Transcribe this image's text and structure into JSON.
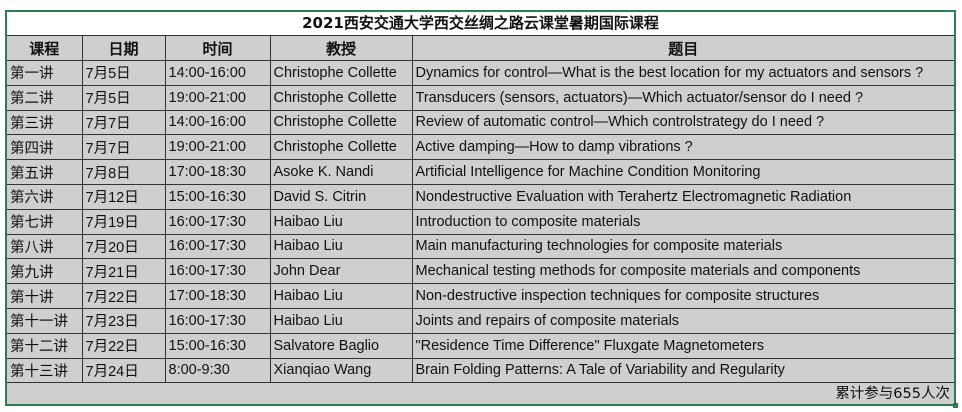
{
  "title": "2021西安交通大学西交丝绸之路云课堂暑期国际课程",
  "headers": [
    "课程",
    "日期",
    "时间",
    "教授",
    "题目"
  ],
  "rows": [
    [
      "第一讲",
      "7月5日",
      "14:00-16:00",
      "Christophe Collette",
      "Dynamics for control—What is the best location for my actuators and sensors ?"
    ],
    [
      "第二讲",
      "7月5日",
      "19:00-21:00",
      "Christophe Collette",
      "Transducers (sensors, actuators)—Which actuator/sensor do I need ?"
    ],
    [
      "第三讲",
      "7月7日",
      "14:00-16:00",
      "Christophe Collette",
      "Review of automatic control—Which controlstrategy do I need ?"
    ],
    [
      "第四讲",
      "7月7日",
      "19:00-21:00",
      "Christophe Collette",
      "Active damping—How to damp vibrations ?"
    ],
    [
      "第五讲",
      "7月8日",
      "17:00-18:30",
      "Asoke K. Nandi",
      "Artificial Intelligence for Machine Condition Monitoring"
    ],
    [
      "第六讲",
      "7月12日",
      "15:00-16:30",
      "David S. Citrin",
      "Nondestructive Evaluation with Terahertz Electromagnetic Radiation"
    ],
    [
      "第七讲",
      "7月19日",
      "16:00-17:30",
      "Haibao  Liu",
      "Introduction to composite materials"
    ],
    [
      "第八讲",
      "7月20日",
      "16:00-17:30",
      "Haibao  Liu",
      "Main manufacturing technologies for composite materials"
    ],
    [
      "第九讲",
      "7月21日",
      "16:00-17:30",
      "John Dear",
      "Mechanical testing methods for composite materials and components"
    ],
    [
      "第十讲",
      "7月22日",
      "17:00-18:30",
      "Haibao  Liu",
      "Non-destructive inspection techniques for composite structures"
    ],
    [
      "第十一讲",
      "7月23日",
      "16:00-17:30",
      "Haibao  Liu",
      "Joints and repairs of composite materials"
    ],
    [
      "第十二讲",
      "7月22日",
      "15:00-16:30",
      "Salvatore Baglio",
      "\"Residence Time Difference\" Fluxgate Magnetometers"
    ],
    [
      "第十三讲",
      "7月24日",
      "8:00-9:30",
      "Xianqiao Wang",
      "Brain Folding Patterns: A Tale of Variability and Regularity"
    ]
  ],
  "footer": "累计参与655人次",
  "colors": {
    "border": "#2e7d4f",
    "cell_bg": "#cfcfcf"
  }
}
